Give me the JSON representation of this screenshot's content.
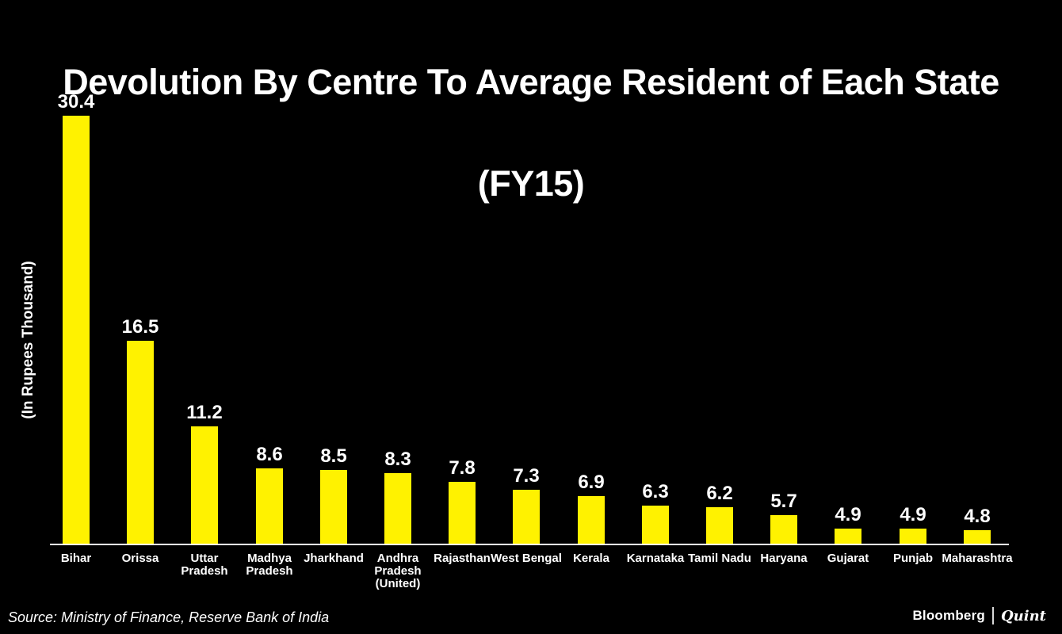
{
  "title": {
    "line1": "Devolution By Centre To Average Resident of Each State",
    "line2": "(FY15)"
  },
  "source_note": "Source: Ministry of Finance, Reserve Bank of India",
  "branding": {
    "bloomberg": "Bloomberg",
    "quint": "Quint"
  },
  "colors": {
    "background": "#000000",
    "bar": "#FFF200",
    "text": "#FFFFFF",
    "axis": "#FFFFFF"
  },
  "chart_data": {
    "type": "bar",
    "title": "Devolution By Centre To Average Resident of Each State (FY15)",
    "xlabel": "",
    "ylabel": "(In Rupees Thousand)",
    "categories": [
      "Bihar",
      "Orissa",
      "Uttar Pradesh",
      "Madhya Pradesh",
      "Jharkhand",
      "Andhra Pradesh (United)",
      "Rajasthan",
      "West Bengal",
      "Kerala",
      "Karnataka",
      "Tamil Nadu",
      "Haryana",
      "Gujarat",
      "Punjab",
      "Maharashtra"
    ],
    "category_label_lines": [
      [
        "Bihar"
      ],
      [
        "Orissa"
      ],
      [
        "Uttar",
        "Pradesh"
      ],
      [
        "Madhya",
        "Pradesh"
      ],
      [
        "Jharkhand"
      ],
      [
        "Andhra",
        "Pradesh",
        "(United)"
      ],
      [
        "Rajasthan"
      ],
      [
        "West Bengal"
      ],
      [
        "Kerala"
      ],
      [
        "Karnataka"
      ],
      [
        "Tamil Nadu"
      ],
      [
        "Haryana"
      ],
      [
        "Gujarat"
      ],
      [
        "Punjab"
      ],
      [
        "Maharashtra"
      ]
    ],
    "values": [
      30.4,
      16.5,
      11.2,
      8.6,
      8.5,
      8.3,
      7.8,
      7.3,
      6.9,
      6.3,
      6.2,
      5.7,
      4.9,
      4.9,
      4.8
    ],
    "value_label_decimals": 1,
    "ylim": [
      4,
      31
    ],
    "grid": false,
    "legend": false,
    "bar_color": "#FFF200"
  }
}
